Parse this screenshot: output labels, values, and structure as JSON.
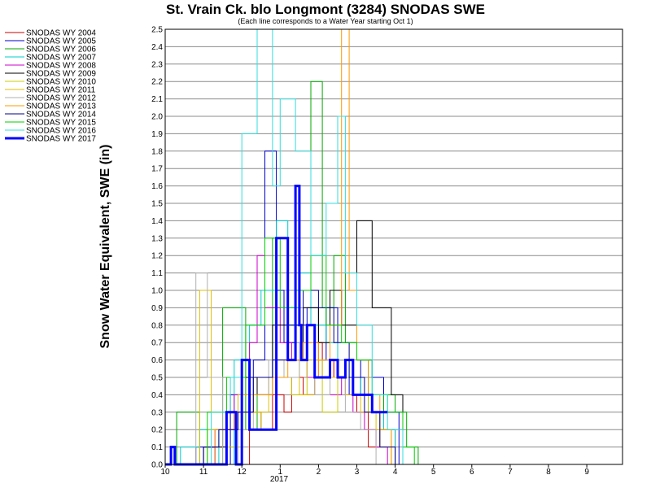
{
  "chart_data": {
    "type": "line",
    "title": "St. Vrain Ck. blo Longmont (3284) SNODAS SWE",
    "subtitle": "(Each line corresponds to a Water Year starting Oct 1)",
    "ylabel": "Snow Water Equivalent, SWE (in)",
    "xlabel": "",
    "x_tick_labels": [
      "10",
      "11",
      "12",
      "1",
      "2",
      "3",
      "4",
      "5",
      "6",
      "7",
      "8",
      "9"
    ],
    "year_label": "2017",
    "ylim": [
      0,
      2.5
    ],
    "y_ticks": [
      0.0,
      0.1,
      0.2,
      0.3,
      0.4,
      0.5,
      0.6,
      0.7,
      0.8,
      0.9,
      1.0,
      1.1,
      1.2,
      1.3,
      1.4,
      1.5,
      1.6,
      1.7,
      1.8,
      1.9,
      2.0,
      2.1,
      2.2,
      2.3,
      2.4,
      2.5
    ],
    "y_tick_labels": [
      "0.0",
      "0.1",
      "0.2",
      "0.3",
      "0.4",
      "0.5",
      "0.6",
      "0.7",
      "0.8",
      "0.9",
      "1.0",
      "1.1",
      "1.2",
      "1.3",
      "1.4",
      "1.5",
      "1.6",
      "1.7",
      "1.8",
      "1.9",
      "2.0",
      "2.1",
      "2.2",
      "2.3",
      "2.4",
      "2.5"
    ],
    "xlim_months": [
      0,
      12
    ],
    "grid": true,
    "legend_position": "left",
    "series": [
      {
        "name": "SNODAS WY 2004",
        "color": "#cc0000",
        "bold": false,
        "x": [
          0,
          0.6,
          1.2,
          1.5,
          1.9,
          2.2,
          2.5,
          2.8,
          3.1,
          3.3,
          3.6,
          3.9,
          4.1,
          4.4,
          4.7,
          5.0,
          5.3,
          5.6,
          6.0
        ],
        "values": [
          0,
          0,
          0.1,
          0.2,
          0,
          0.3,
          0.2,
          0.4,
          0.3,
          0.5,
          0.4,
          0.7,
          0.5,
          0.6,
          0.4,
          0.3,
          0.1,
          0.2,
          0
        ]
      },
      {
        "name": "SNODAS WY 2005",
        "color": "#0000cc",
        "bold": false,
        "x": [
          0,
          0.8,
          1.3,
          1.7,
          2.0,
          2.3,
          2.6,
          2.9,
          3.1,
          3.4,
          3.7,
          4.0,
          4.2,
          4.5,
          4.8,
          5.1,
          5.4,
          5.7,
          6.1
        ],
        "values": [
          0,
          0.1,
          0,
          0.4,
          0.3,
          0.6,
          1.8,
          1.0,
          0.7,
          0.8,
          0.9,
          0.6,
          0.9,
          0.5,
          0.4,
          0.6,
          0.5,
          0.3,
          0
        ]
      },
      {
        "name": "SNODAS WY 2006",
        "color": "#00aa00",
        "bold": false,
        "x": [
          0,
          0.3,
          0.9,
          1.5,
          2.1,
          2.4,
          2.8,
          3.2,
          3.5,
          3.8,
          4.1,
          4.4,
          4.7,
          5.0,
          5.3,
          5.7,
          6.0,
          6.3,
          6.6
        ],
        "values": [
          0,
          0.3,
          0,
          0.9,
          0.2,
          0.5,
          1.3,
          0.8,
          1.0,
          2.2,
          0.9,
          1.2,
          0.7,
          0.6,
          0.3,
          0.4,
          0.3,
          0.1,
          0
        ]
      },
      {
        "name": "SNODAS WY 2007",
        "color": "#00cccc",
        "bold": false,
        "x": [
          0,
          0.4,
          0.9,
          1.4,
          1.8,
          2.2,
          2.5,
          2.9,
          3.2,
          3.5,
          3.8,
          4.2,
          4.5,
          4.8,
          5.1,
          5.4,
          5.7,
          6.0
        ],
        "values": [
          0,
          0.1,
          0.2,
          0,
          0.6,
          0.8,
          1.0,
          1.4,
          0.9,
          1.1,
          0.8,
          0.7,
          0.6,
          0.5,
          0.4,
          0.3,
          0.2,
          0
        ]
      },
      {
        "name": "SNODAS WY 2008",
        "color": "#cc00cc",
        "bold": false,
        "x": [
          0,
          0.8,
          1.3,
          1.8,
          2.2,
          2.4,
          2.6,
          3.0,
          3.3,
          3.7,
          4.0,
          4.3,
          4.6,
          4.9,
          5.2,
          5.5,
          5.8
        ],
        "values": [
          0,
          0,
          0.2,
          0.4,
          0.7,
          1.2,
          0.9,
          0.7,
          0.6,
          0.5,
          0.6,
          0.4,
          0.5,
          0.3,
          0.2,
          0.1,
          0
        ]
      },
      {
        "name": "SNODAS WY 2009",
        "color": "#000000",
        "bold": false,
        "x": [
          0,
          0.5,
          1.0,
          1.6,
          2.0,
          2.4,
          2.8,
          3.2,
          3.6,
          4.0,
          4.3,
          4.6,
          5.0,
          5.4,
          5.9,
          6.2
        ],
        "values": [
          0,
          0,
          0.1,
          0.3,
          0.5,
          0.4,
          0.8,
          0.6,
          0.9,
          0.7,
          1.0,
          0.8,
          1.4,
          0.9,
          0.4,
          0.0
        ]
      },
      {
        "name": "SNODAS WY 2010",
        "color": "#cccc00",
        "bold": false,
        "x": [
          0,
          0.6,
          1.1,
          1.6,
          2.0,
          2.5,
          2.9,
          3.3,
          3.7,
          4.1,
          4.5,
          4.9,
          5.3,
          5.6,
          5.9
        ],
        "values": [
          0,
          0,
          0.2,
          0.1,
          0.3,
          0.2,
          0.5,
          0.4,
          0.6,
          0.3,
          0.5,
          0.4,
          0.3,
          0.1,
          0
        ]
      },
      {
        "name": "SNODAS WY 2011",
        "color": "#e0c000",
        "bold": false,
        "x": [
          0,
          0.7,
          0.9,
          1.2,
          1.6,
          1.9,
          2.3,
          2.7,
          3.1,
          3.5,
          3.9,
          4.3,
          4.7,
          5.1,
          5.5,
          5.9
        ],
        "values": [
          0,
          0,
          1.0,
          0.3,
          0,
          0.4,
          0.3,
          0.5,
          0.6,
          0.4,
          0.6,
          0.5,
          0.4,
          0.3,
          0.2,
          0
        ]
      },
      {
        "name": "SNODAS WY 2012",
        "color": "#b0b0b0",
        "bold": false,
        "x": [
          0,
          0.6,
          0.8,
          1.1,
          1.5,
          1.9,
          2.3,
          2.7,
          3.1,
          3.5,
          3.9,
          4.3,
          4.7,
          5.1,
          5.5
        ],
        "values": [
          0,
          0,
          1.1,
          0.5,
          0,
          0.2,
          0.4,
          0.6,
          0.5,
          0.7,
          0.4,
          0.6,
          0.3,
          0.2,
          0
        ]
      },
      {
        "name": "SNODAS WY 2013",
        "color": "#ff9900",
        "bold": false,
        "x": [
          0,
          0.8,
          1.3,
          1.8,
          2.3,
          2.8,
          3.2,
          3.6,
          4.0,
          4.3,
          4.6,
          4.8,
          5.0,
          5.3,
          5.6,
          5.9
        ],
        "values": [
          0,
          0,
          0.2,
          0.3,
          0.4,
          0.5,
          0.6,
          0.7,
          0.5,
          0.8,
          2.5,
          1.0,
          0.6,
          0.4,
          0.2,
          0
        ]
      },
      {
        "name": "SNODAS WY 2014",
        "color": "#00008b",
        "bold": false,
        "x": [
          0,
          0.5,
          1.0,
          1.4,
          1.9,
          2.3,
          2.8,
          3.2,
          3.6,
          4.0,
          4.4,
          4.8,
          5.2,
          5.6,
          6.0
        ],
        "values": [
          0,
          0,
          0.1,
          0.2,
          0.3,
          0.5,
          0.6,
          0.8,
          1.0,
          0.9,
          0.7,
          0.5,
          0.3,
          0.1,
          0
        ]
      },
      {
        "name": "SNODAS WY 2015",
        "color": "#00cc00",
        "bold": false,
        "x": [
          0,
          0.6,
          1.1,
          1.6,
          2.1,
          2.6,
          3.0,
          3.4,
          3.8,
          4.2,
          4.6,
          5.0,
          5.4,
          5.8,
          6.2,
          6.5
        ],
        "values": [
          0,
          0,
          0.3,
          0.5,
          0.8,
          1.3,
          0.9,
          1.0,
          1.2,
          0.8,
          0.7,
          0.6,
          0.4,
          0.3,
          0.1,
          0
        ]
      },
      {
        "name": "SNODAS WY 2016",
        "color": "#33dddd",
        "bold": false,
        "x": [
          0,
          0.7,
          1.2,
          1.7,
          2.0,
          2.4,
          2.8,
          3.0,
          3.4,
          3.8,
          4.2,
          4.5,
          4.7,
          5.0,
          5.4,
          5.8,
          6.2
        ],
        "values": [
          0,
          0,
          0.3,
          0.5,
          1.9,
          2.5,
          1.6,
          2.1,
          1.8,
          1.2,
          1.5,
          2.0,
          1.1,
          0.8,
          0.4,
          0.2,
          0
        ]
      },
      {
        "name": "SNODAS WY 2017",
        "color": "#0000ff",
        "bold": true,
        "x": [
          0,
          0.15,
          0.25,
          0.4,
          0.9,
          1.5,
          1.6,
          1.85,
          2.0,
          2.2,
          2.5,
          2.9,
          3.2,
          3.4,
          3.5,
          3.55,
          3.7,
          3.9,
          4.0,
          4.15,
          4.3,
          4.5,
          4.7,
          4.9,
          5.0,
          5.2,
          5.4,
          5.6,
          5.8
        ],
        "values": [
          0,
          0.1,
          0,
          0,
          0,
          0,
          0.3,
          0,
          0.6,
          0.2,
          0.2,
          1.3,
          0.6,
          1.6,
          0.8,
          0.6,
          0.8,
          0.5,
          0.5,
          0.5,
          0.6,
          0.5,
          0.6,
          0.4,
          0.4,
          0.4,
          0.3,
          0.3,
          0.3
        ]
      }
    ]
  }
}
